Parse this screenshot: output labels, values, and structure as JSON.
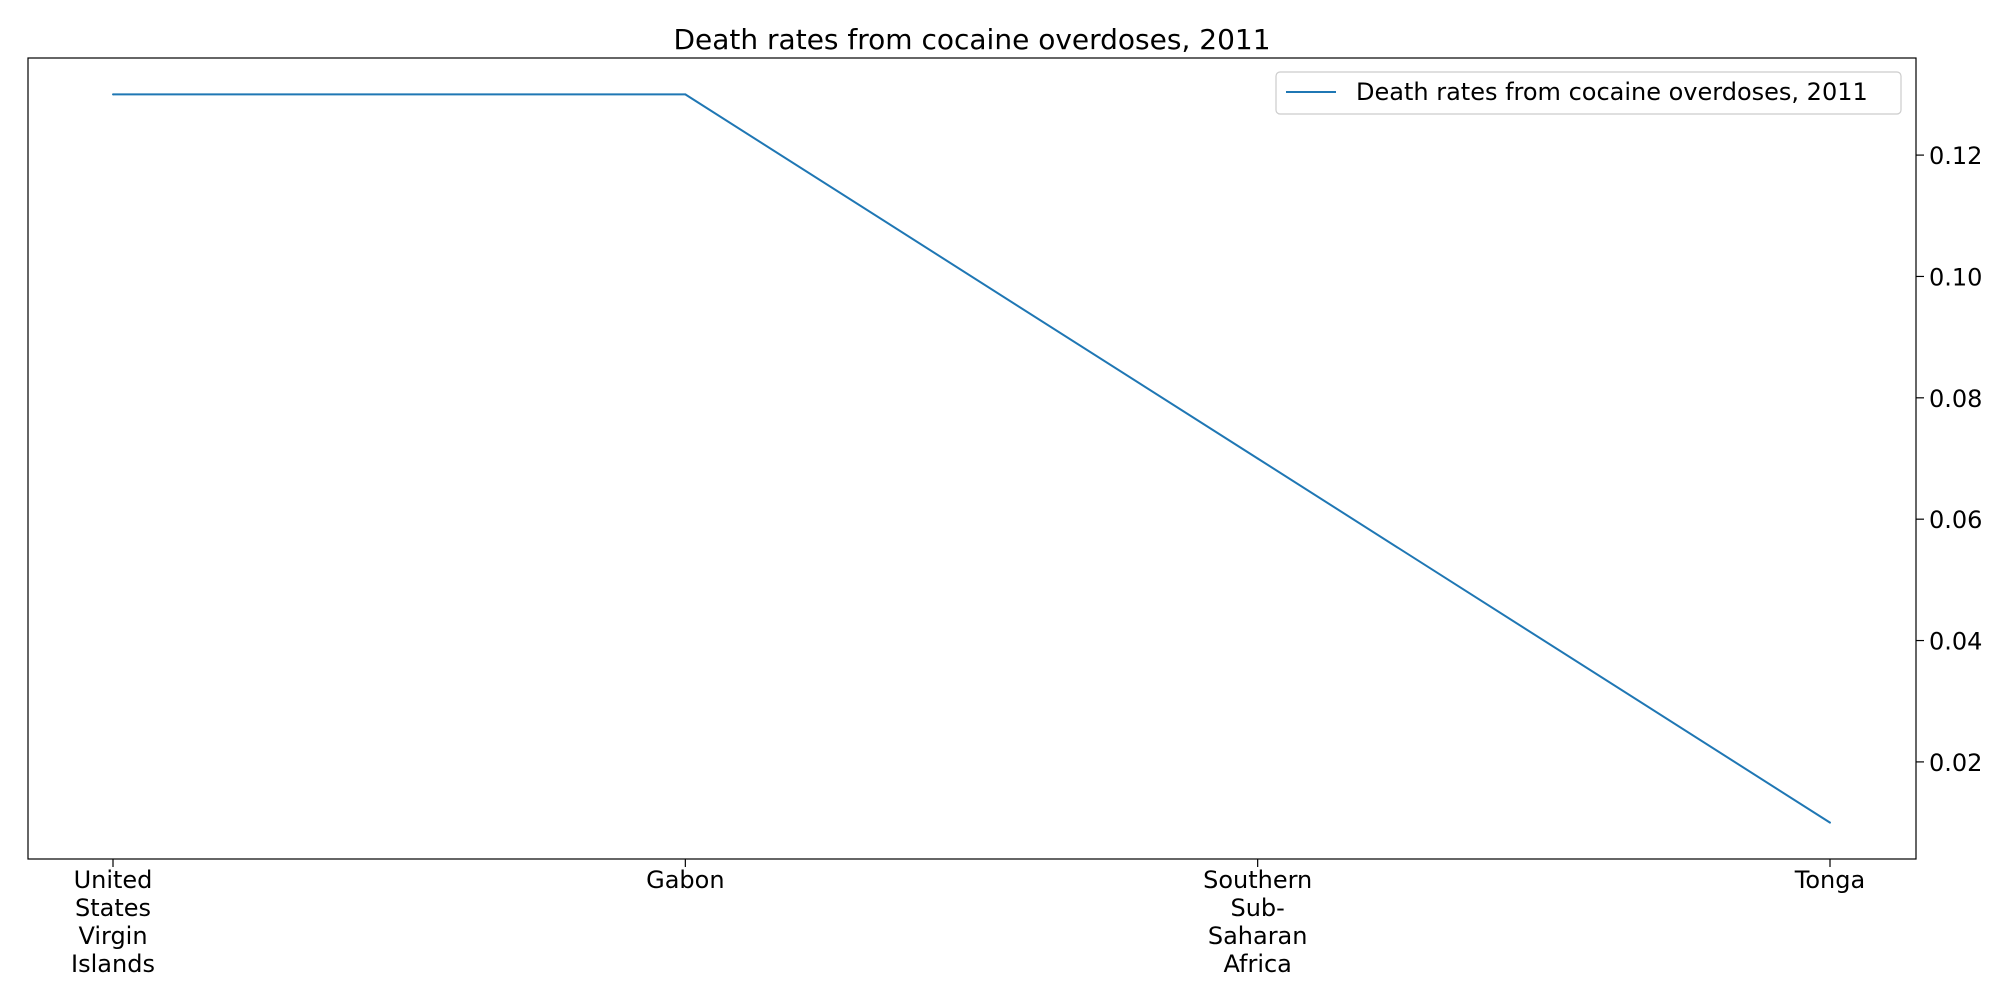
{
  "chart_data": {
    "type": "line",
    "title": "Death rates from cocaine overdoses, 2011",
    "categories": [
      "United States Virgin Islands",
      "Gabon",
      "Southern Sub-Saharan Africa",
      "Tonga"
    ],
    "category_label_lines": [
      [
        "United",
        "States",
        "Virgin",
        "Islands"
      ],
      [
        "Gabon"
      ],
      [
        "Southern",
        "Sub-",
        "Saharan",
        "Africa"
      ],
      [
        "Tonga"
      ]
    ],
    "series": [
      {
        "name": "Death rates from cocaine overdoses, 2011",
        "values": [
          0.13,
          0.13,
          0.07,
          0.01
        ],
        "color": "#1f77b4"
      }
    ],
    "y_axis_position": "right",
    "y_ticks": [
      "0.02",
      "0.04",
      "0.06",
      "0.08",
      "0.10",
      "0.12"
    ],
    "ylim": [
      0.004,
      0.136
    ],
    "legend_position": "top-right",
    "grid": false,
    "xlabel": "",
    "ylabel": ""
  }
}
